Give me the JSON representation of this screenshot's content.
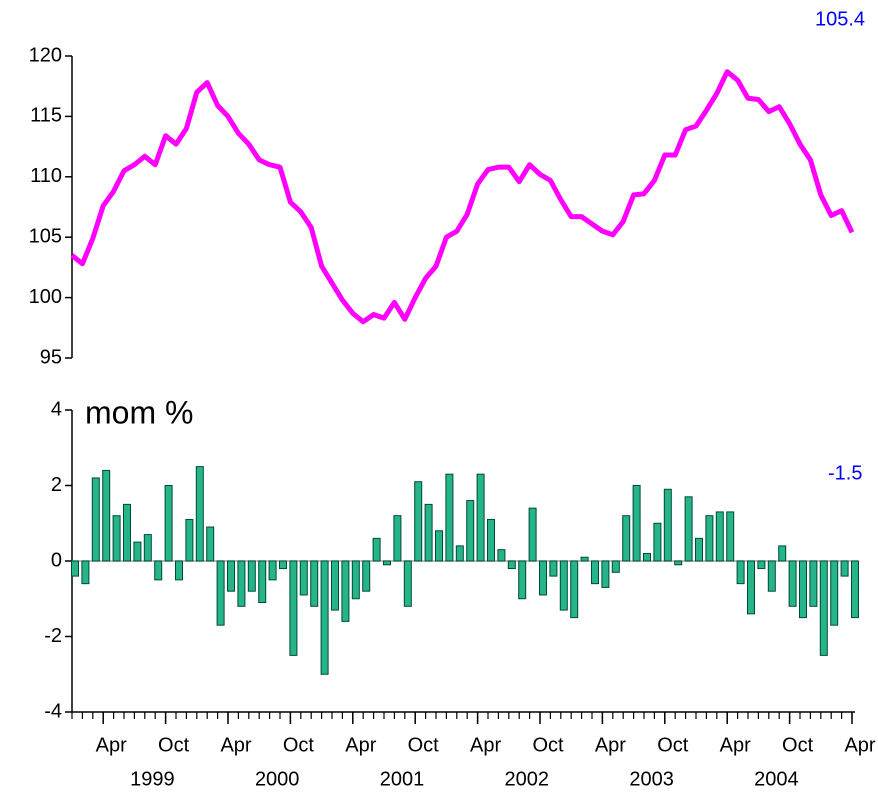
{
  "chart_data": [
    {
      "type": "line",
      "color": "#ff00ff",
      "annotation": "105.4",
      "xlim": [
        "1999-01",
        "2005-04"
      ],
      "ylim": [
        95,
        120
      ],
      "yticks": [
        95,
        100,
        105,
        110,
        115,
        120
      ],
      "x": [
        "1999-01",
        "1999-02",
        "1999-03",
        "1999-04",
        "1999-05",
        "1999-06",
        "1999-07",
        "1999-08",
        "1999-09",
        "1999-10",
        "1999-11",
        "1999-12",
        "2000-01",
        "2000-02",
        "2000-03",
        "2000-04",
        "2000-05",
        "2000-06",
        "2000-07",
        "2000-08",
        "2000-09",
        "2000-10",
        "2000-11",
        "2000-12",
        "2001-01",
        "2001-02",
        "2001-03",
        "2001-04",
        "2001-05",
        "2001-06",
        "2001-07",
        "2001-08",
        "2001-09",
        "2001-10",
        "2001-11",
        "2001-12",
        "2002-01",
        "2002-02",
        "2002-03",
        "2002-04",
        "2002-05",
        "2002-06",
        "2002-07",
        "2002-08",
        "2002-09",
        "2002-10",
        "2002-11",
        "2002-12",
        "2003-01",
        "2003-02",
        "2003-03",
        "2003-04",
        "2003-05",
        "2003-06",
        "2003-07",
        "2003-08",
        "2003-09",
        "2003-10",
        "2003-11",
        "2003-12",
        "2004-01",
        "2004-02",
        "2004-03",
        "2004-04",
        "2004-05",
        "2004-06",
        "2004-07",
        "2004-08",
        "2004-09",
        "2004-10",
        "2004-11",
        "2004-12",
        "2005-01",
        "2005-02",
        "2005-03",
        "2005-04"
      ],
      "values": [
        103.5,
        102.8,
        104.9,
        107.6,
        108.8,
        110.5,
        111.0,
        111.7,
        111.0,
        113.4,
        112.7,
        114.0,
        117.0,
        117.8,
        115.9,
        115.0,
        113.6,
        112.7,
        111.4,
        111.0,
        110.8,
        107.9,
        107.1,
        105.8,
        102.6,
        101.2,
        99.8,
        98.7,
        98.0,
        98.6,
        98.3,
        99.6,
        98.2,
        100.0,
        101.6,
        102.6,
        105.0,
        105.5,
        106.9,
        109.4,
        110.6,
        110.8,
        110.8,
        109.6,
        111.0,
        110.2,
        109.7,
        108.1,
        106.7,
        106.7,
        106.1,
        105.5,
        105.2,
        106.3,
        108.5,
        108.6,
        109.7,
        111.8,
        111.8,
        113.9,
        114.2,
        115.5,
        116.9,
        118.7,
        118.0,
        116.5,
        116.4,
        115.4,
        115.8,
        114.4,
        112.7,
        111.4,
        108.5,
        106.8,
        107.2,
        105.4
      ]
    },
    {
      "type": "bar",
      "title": "mom %",
      "color": "#26b58a",
      "annotation": "-1.5",
      "xlim": [
        "1999-01",
        "2005-04"
      ],
      "ylim": [
        -4,
        4
      ],
      "yticks": [
        -4,
        -2,
        0,
        2,
        4
      ],
      "x": [
        "1999-01",
        "1999-02",
        "1999-03",
        "1999-04",
        "1999-05",
        "1999-06",
        "1999-07",
        "1999-08",
        "1999-09",
        "1999-10",
        "1999-11",
        "1999-12",
        "2000-01",
        "2000-02",
        "2000-03",
        "2000-04",
        "2000-05",
        "2000-06",
        "2000-07",
        "2000-08",
        "2000-09",
        "2000-10",
        "2000-11",
        "2000-12",
        "2001-01",
        "2001-02",
        "2001-03",
        "2001-04",
        "2001-05",
        "2001-06",
        "2001-07",
        "2001-08",
        "2001-09",
        "2001-10",
        "2001-11",
        "2001-12",
        "2002-01",
        "2002-02",
        "2002-03",
        "2002-04",
        "2002-05",
        "2002-06",
        "2002-07",
        "2002-08",
        "2002-09",
        "2002-10",
        "2002-11",
        "2002-12",
        "2003-01",
        "2003-02",
        "2003-03",
        "2003-04",
        "2003-05",
        "2003-06",
        "2003-07",
        "2003-08",
        "2003-09",
        "2003-10",
        "2003-11",
        "2003-12",
        "2004-01",
        "2004-02",
        "2004-03",
        "2004-04",
        "2004-05",
        "2004-06",
        "2004-07",
        "2004-08",
        "2004-09",
        "2004-10",
        "2004-11",
        "2004-12",
        "2005-01",
        "2005-02",
        "2005-03",
        "2005-04"
      ],
      "values": [
        -0.4,
        -0.6,
        2.2,
        2.4,
        1.2,
        1.5,
        0.5,
        0.7,
        -0.5,
        2.0,
        -0.5,
        1.1,
        2.5,
        0.9,
        -1.7,
        -0.8,
        -1.2,
        -0.8,
        -1.1,
        -0.5,
        -0.2,
        -2.5,
        -0.9,
        -1.2,
        -3.0,
        -1.3,
        -1.6,
        -1.0,
        -0.8,
        0.6,
        -0.1,
        1.2,
        -1.2,
        2.1,
        1.5,
        0.8,
        2.3,
        0.4,
        1.6,
        2.3,
        1.1,
        0.3,
        -0.2,
        -1.0,
        1.4,
        -0.9,
        -0.4,
        -1.3,
        -1.5,
        0.1,
        -0.6,
        -0.7,
        -0.3,
        1.2,
        2.0,
        0.2,
        1.0,
        1.9,
        -0.1,
        1.7,
        0.6,
        1.2,
        1.3,
        1.3,
        -0.6,
        -1.4,
        -0.2,
        -0.8,
        0.4,
        -1.2,
        -1.5,
        -1.2,
        -2.5,
        -1.7,
        -0.4,
        -1.5
      ],
      "xticks": [
        {
          "value": "1999-04",
          "label": "Apr"
        },
        {
          "value": "1999-10",
          "label": "Oct"
        },
        {
          "value": "2000-04",
          "label": "Apr"
        },
        {
          "value": "2000-10",
          "label": "Oct"
        },
        {
          "value": "2001-04",
          "label": "Apr"
        },
        {
          "value": "2001-10",
          "label": "Oct"
        },
        {
          "value": "2002-04",
          "label": "Apr"
        },
        {
          "value": "2002-10",
          "label": "Oct"
        },
        {
          "value": "2003-04",
          "label": "Apr"
        },
        {
          "value": "2003-10",
          "label": "Oct"
        },
        {
          "value": "2004-04",
          "label": "Apr"
        },
        {
          "value": "2004-10",
          "label": "Oct"
        },
        {
          "value": "2005-04",
          "label": "Apr"
        }
      ],
      "year_ticks": [
        {
          "value": "1999-07",
          "label": "1999"
        },
        {
          "value": "2000-07",
          "label": "2000"
        },
        {
          "value": "2001-07",
          "label": "2001"
        },
        {
          "value": "2002-07",
          "label": "2002"
        },
        {
          "value": "2003-07",
          "label": "2003"
        },
        {
          "value": "2004-07",
          "label": "2004"
        }
      ]
    }
  ]
}
